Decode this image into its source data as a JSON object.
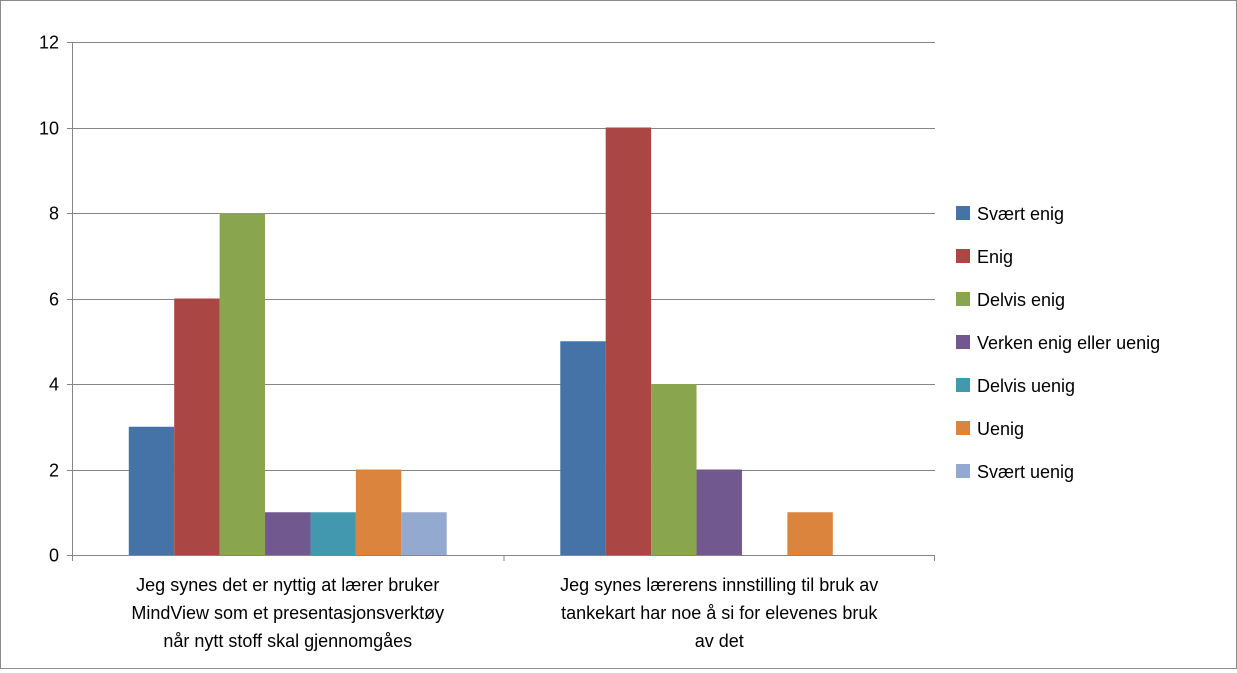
{
  "chart_data": {
    "type": "bar",
    "title": "",
    "xlabel": "",
    "ylabel": "",
    "ylim": [
      0,
      12
    ],
    "yticks": [
      0,
      2,
      4,
      6,
      8,
      10,
      12
    ],
    "grid": true,
    "legend_position": "right",
    "categories": [
      "Jeg synes det er nyttig at lærer bruker MindView som et presentasjonsverktøy når nytt stoff skal gjennomgåes",
      "Jeg synes lærerens innstilling til bruk av tankekart har noe å si for elevenes bruk av det"
    ],
    "category_label_lines": [
      [
        "Jeg synes det er nyttig at lærer bruker",
        "MindView som et presentasjonsverktøy",
        "når nytt stoff skal gjennomgåes"
      ],
      [
        "Jeg synes lærerens innstilling til bruk av",
        "tankekart har noe å si for elevenes bruk",
        "av det"
      ]
    ],
    "series": [
      {
        "name": "Svært enig",
        "color": "#4573A7",
        "values": [
          3,
          5
        ]
      },
      {
        "name": "Enig",
        "color": "#AA4643",
        "values": [
          6,
          10
        ]
      },
      {
        "name": "Delvis enig",
        "color": "#89A54E",
        "values": [
          8,
          4
        ]
      },
      {
        "name": "Verken enig eller uenig",
        "color": "#71588F",
        "values": [
          1,
          2
        ]
      },
      {
        "name": "Delvis uenig",
        "color": "#4198AF",
        "values": [
          1,
          0
        ]
      },
      {
        "name": "Uenig",
        "color": "#DB843D",
        "values": [
          2,
          1
        ]
      },
      {
        "name": "Svært uenig",
        "color": "#93A9CF",
        "values": [
          1,
          0
        ]
      }
    ]
  }
}
